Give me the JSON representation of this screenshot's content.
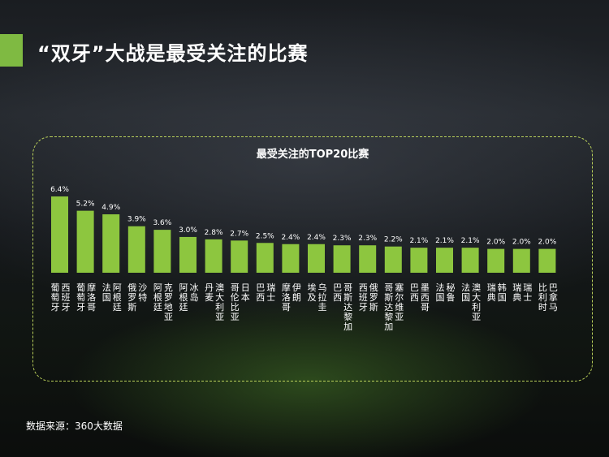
{
  "slide": {
    "title": "“双牙”大战是最受关注的比赛",
    "source": "数据来源：360大数据"
  },
  "colors": {
    "accent": "#7fba42",
    "bar": "#8dc63f",
    "panel_border": "#b9d05a"
  },
  "chart_data": {
    "type": "bar",
    "title": "最受关注的TOP20比赛",
    "xlabel": "",
    "ylabel": "",
    "value_format": "percent_1dp",
    "categories": [
      {
        "team1": "葡萄牙",
        "team2": "西班牙"
      },
      {
        "team1": "葡萄牙",
        "team2": "摩洛哥"
      },
      {
        "team1": "法国",
        "team2": "阿根廷"
      },
      {
        "team1": "俄罗斯",
        "team2": "沙特"
      },
      {
        "team1": "阿根廷",
        "team2": "克罗地亚"
      },
      {
        "team1": "阿根廷",
        "team2": "冰岛"
      },
      {
        "team1": "丹麦",
        "team2": "澳大利亚"
      },
      {
        "team1": "哥伦比亚",
        "team2": "日本"
      },
      {
        "team1": "巴西",
        "team2": "瑞士"
      },
      {
        "team1": "摩洛哥",
        "team2": "伊朗"
      },
      {
        "team1": "埃及",
        "team2": "乌拉圭"
      },
      {
        "team1": "巴西",
        "team2": "哥斯达黎加"
      },
      {
        "team1": "西班牙",
        "team2": "俄罗斯"
      },
      {
        "team1": "哥斯达黎加",
        "team2": "塞尔维亚"
      },
      {
        "team1": "巴西",
        "team2": "墨西哥"
      },
      {
        "team1": "法国",
        "team2": "秘鲁"
      },
      {
        "team1": "法国",
        "team2": "澳大利亚"
      },
      {
        "team1": "瑞典",
        "team2": "韩国"
      },
      {
        "team1": "瑞典",
        "team2": "瑞士"
      },
      {
        "team1": "比利时",
        "team2": "巴拿马"
      }
    ],
    "values": [
      6.4,
      5.2,
      4.9,
      3.9,
      3.6,
      3.0,
      2.8,
      2.7,
      2.5,
      2.4,
      2.4,
      2.3,
      2.3,
      2.2,
      2.1,
      2.1,
      2.1,
      2.0,
      2.0,
      2.0
    ],
    "ylim": [
      0,
      6.4
    ],
    "grid": false,
    "legend": "none"
  }
}
